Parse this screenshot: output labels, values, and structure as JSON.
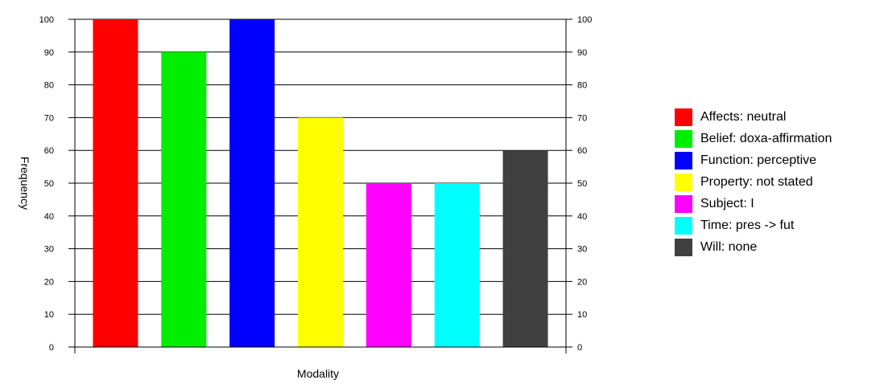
{
  "chart_data": {
    "type": "bar",
    "title": "",
    "xlabel": "Modality",
    "ylabel": "Frequency",
    "ylim": [
      0,
      100
    ],
    "yticks": [
      0,
      10,
      20,
      30,
      40,
      50,
      60,
      70,
      80,
      90,
      100
    ],
    "grid": true,
    "legend_position": "right",
    "right_axis_mirrors_left": true,
    "categories": [
      "Affects:  neutral",
      "Belief:  doxa-affirmation",
      "Function:  perceptive",
      "Property:  not stated",
      "Subject:  I",
      "Time:  pres -> fut",
      "Will:  none"
    ],
    "values": [
      100,
      90,
      100,
      70,
      50,
      50,
      60
    ],
    "colors": [
      "#ff0000",
      "#00ee00",
      "#0000ff",
      "#ffff00",
      "#ff00ff",
      "#00ffff",
      "#404040"
    ]
  }
}
